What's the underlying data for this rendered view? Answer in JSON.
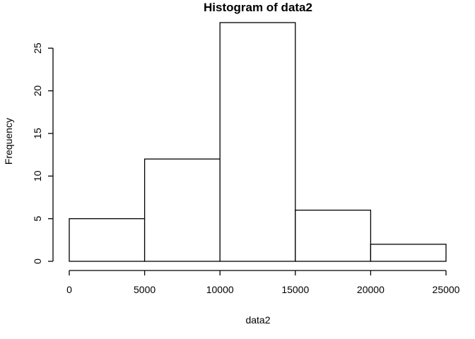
{
  "chart_data": {
    "type": "bar",
    "title": "Histogram of data2",
    "xlabel": "data2",
    "ylabel": "Frequency",
    "bins": [
      {
        "from": 0,
        "to": 5000,
        "count": 5
      },
      {
        "from": 5000,
        "to": 10000,
        "count": 12
      },
      {
        "from": 10000,
        "to": 15000,
        "count": 28
      },
      {
        "from": 15000,
        "to": 20000,
        "count": 6
      },
      {
        "from": 20000,
        "to": 25000,
        "count": 2
      }
    ],
    "xlim": [
      0,
      25000
    ],
    "ylim": [
      0,
      28
    ],
    "x_ticks": [
      0,
      5000,
      10000,
      15000,
      20000,
      25000
    ],
    "y_ticks": [
      0,
      5,
      10,
      15,
      20,
      25
    ],
    "bar_fill": "#ffffff",
    "bar_stroke": "#000000",
    "grid": false
  }
}
